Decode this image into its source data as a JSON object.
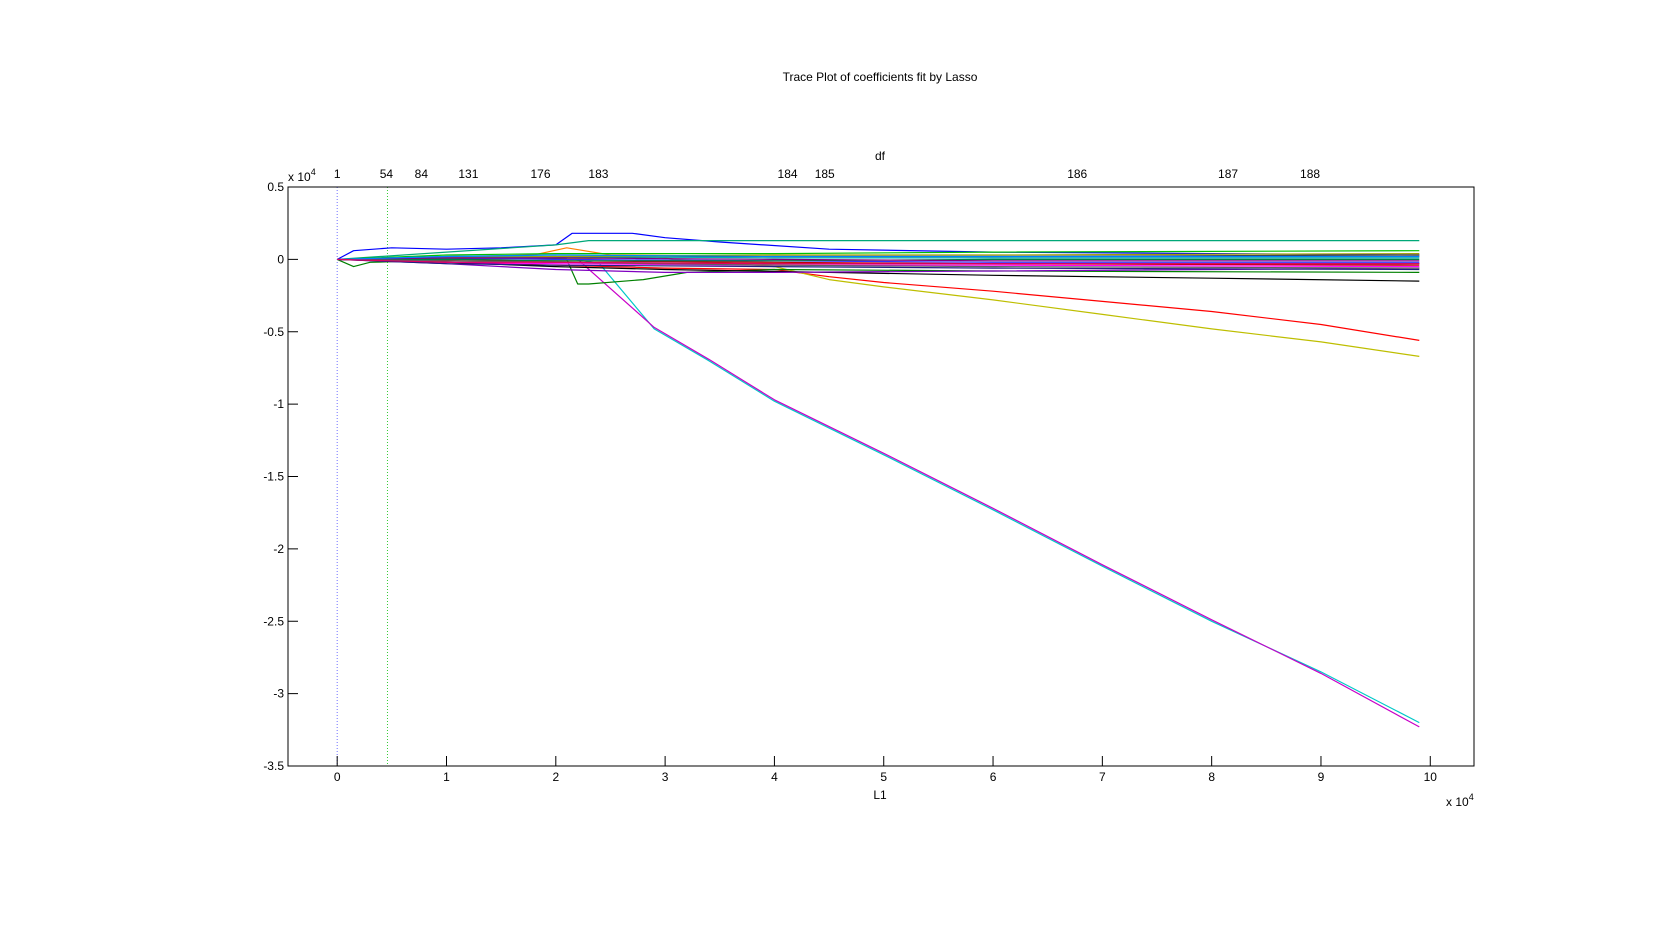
{
  "chart_data": {
    "type": "line",
    "title": "Trace Plot of coefficients fit by Lasso",
    "xlabel": "L1",
    "ylabel": "",
    "top_axis_label": "df",
    "x_exponent": {
      "base": "x 10",
      "power": "4"
    },
    "y_exponent": {
      "base": "x 10",
      "power": "4"
    },
    "xlim": [
      -0.45,
      10.4
    ],
    "ylim": [
      -3.5,
      0.5
    ],
    "x_ticks": [
      0,
      1,
      2,
      3,
      4,
      5,
      6,
      7,
      8,
      9,
      10
    ],
    "x_tick_labels": [
      "0",
      "1",
      "2",
      "3",
      "4",
      "5",
      "6",
      "7",
      "8",
      "9",
      "10"
    ],
    "y_ticks": [
      0.5,
      0,
      -0.5,
      -1,
      -1.5,
      -2,
      -2.5,
      -3,
      -3.5
    ],
    "y_tick_labels": [
      "0.5",
      "0",
      "-0.5",
      "-1",
      "-1.5",
      "-2",
      "-2.5",
      "-3",
      "-3.5"
    ],
    "df_ticks": [
      {
        "x": 0.0,
        "label": "1"
      },
      {
        "x": 0.45,
        "label": "54"
      },
      {
        "x": 0.77,
        "label": "84"
      },
      {
        "x": 1.2,
        "label": "131"
      },
      {
        "x": 1.86,
        "label": "176"
      },
      {
        "x": 2.39,
        "label": "183"
      },
      {
        "x": 4.12,
        "label": "184"
      },
      {
        "x": 4.46,
        "label": "185"
      },
      {
        "x": 6.77,
        "label": "186"
      },
      {
        "x": 8.15,
        "label": "187"
      },
      {
        "x": 8.9,
        "label": "188"
      }
    ],
    "vertical_lines": [
      {
        "x": 0.0,
        "color": "#7070ff",
        "style": "dotted"
      },
      {
        "x": 0.46,
        "color": "#33cc33",
        "style": "dotted"
      }
    ],
    "grid": false,
    "legend": "none",
    "series": [
      {
        "color": "#00c8c8",
        "x": [
          0,
          2.1,
          2.4,
          2.9,
          3.4,
          4.0,
          5.0,
          6.0,
          7.0,
          8.0,
          9.0,
          9.9
        ],
        "y": [
          0,
          0.01,
          -0.03,
          -0.48,
          -0.7,
          -0.98,
          -1.35,
          -1.73,
          -2.12,
          -2.5,
          -2.85,
          -3.2
        ]
      },
      {
        "color": "#c800c8",
        "x": [
          0,
          2.0,
          2.2,
          2.9,
          3.4,
          4.0,
          5.0,
          6.0,
          7.0,
          8.0,
          9.0,
          9.9
        ],
        "y": [
          0,
          0.02,
          0.0,
          -0.47,
          -0.69,
          -0.97,
          -1.34,
          -1.72,
          -2.11,
          -2.49,
          -2.86,
          -3.23
        ]
      },
      {
        "color": "#ff0000",
        "x": [
          0,
          1.0,
          2.0,
          3.0,
          4.0,
          4.5,
          5.0,
          6.0,
          7.0,
          8.0,
          9.0,
          9.9
        ],
        "y": [
          0,
          -0.02,
          -0.04,
          -0.06,
          -0.07,
          -0.12,
          -0.16,
          -0.22,
          -0.29,
          -0.36,
          -0.45,
          -0.56
        ]
      },
      {
        "color": "#bebe00",
        "x": [
          0,
          1.0,
          2.0,
          2.9,
          3.1,
          4.0,
          4.5,
          5.0,
          6.0,
          7.0,
          8.0,
          9.0,
          9.9
        ],
        "y": [
          0,
          0.01,
          0.0,
          0.02,
          0.0,
          -0.05,
          -0.14,
          -0.19,
          -0.28,
          -0.38,
          -0.48,
          -0.57,
          -0.67
        ]
      },
      {
        "color": "#0000ff",
        "x": [
          0,
          0.15,
          0.5,
          1.0,
          1.5,
          2.0,
          2.15,
          2.7,
          3.0,
          3.5,
          4.5,
          6.0,
          8.0,
          9.9
        ],
        "y": [
          0,
          0.06,
          0.08,
          0.07,
          0.08,
          0.1,
          0.18,
          0.18,
          0.15,
          0.12,
          0.07,
          0.05,
          0.04,
          0.03
        ]
      },
      {
        "color": "#00a878",
        "x": [
          0,
          1.0,
          2.0,
          2.3,
          3.0,
          5.0,
          7.0,
          9.9
        ],
        "y": [
          0,
          0.05,
          0.1,
          0.13,
          0.13,
          0.13,
          0.13,
          0.13
        ]
      },
      {
        "color": "#008000",
        "x": [
          0,
          0.15,
          0.3,
          0.8,
          1.5,
          2.1,
          2.2,
          2.3,
          2.8,
          3.2,
          4.0,
          6.0,
          9.9
        ],
        "y": [
          0,
          -0.05,
          -0.02,
          -0.01,
          0.01,
          0.0,
          -0.17,
          -0.17,
          -0.14,
          -0.09,
          -0.07,
          -0.08,
          -0.09
        ]
      },
      {
        "color": "#000000",
        "x": [
          0,
          1.0,
          2.0,
          3.0,
          4.5,
          6.0,
          8.0,
          9.9
        ],
        "y": [
          0,
          -0.02,
          -0.05,
          -0.07,
          -0.09,
          -0.11,
          -0.13,
          -0.15
        ]
      },
      {
        "color": "#8000c0",
        "x": [
          0,
          1.0,
          2.0,
          3.0,
          4.0,
          6.0,
          9.9
        ],
        "y": [
          0,
          -0.03,
          -0.07,
          -0.09,
          -0.09,
          -0.08,
          -0.06
        ]
      },
      {
        "color": "#ff8000",
        "x": [
          0,
          1.0,
          1.8,
          2.1,
          2.5,
          4.0,
          9.9
        ],
        "y": [
          0,
          0.02,
          0.03,
          0.08,
          0.03,
          0.02,
          0.02
        ]
      },
      {
        "color": "#800000",
        "x": [
          0,
          1.0,
          2.0,
          4.0,
          6.0,
          9.9
        ],
        "y": [
          0,
          -0.01,
          -0.02,
          -0.03,
          -0.03,
          -0.03
        ]
      },
      {
        "color": "#404040",
        "x": [
          0,
          1.0,
          2.0,
          4.0,
          6.0,
          9.9
        ],
        "y": [
          0,
          0.0,
          0.01,
          0.02,
          0.02,
          0.03
        ]
      },
      {
        "color": "#3030ff",
        "x": [
          0,
          1.0,
          2.0,
          4.0,
          6.0,
          9.9
        ],
        "y": [
          0,
          0.01,
          0.0,
          -0.01,
          -0.02,
          -0.02
        ]
      },
      {
        "color": "#00c000",
        "x": [
          0,
          1.0,
          2.0,
          4.0,
          6.0,
          9.9
        ],
        "y": [
          0,
          0.03,
          0.04,
          0.04,
          0.05,
          0.06
        ]
      },
      {
        "color": "#ff00ff",
        "x": [
          0,
          1.0,
          2.0,
          4.0,
          6.0,
          9.9
        ],
        "y": [
          0,
          -0.02,
          -0.03,
          -0.04,
          -0.04,
          -0.05
        ]
      },
      {
        "color": "#00b0b0",
        "x": [
          0,
          1.0,
          2.0,
          4.0,
          6.0,
          9.9
        ],
        "y": [
          0,
          0.02,
          0.02,
          0.01,
          0.01,
          0.01
        ]
      },
      {
        "color": "#c00000",
        "x": [
          0,
          1.0,
          2.0,
          4.0,
          6.0,
          9.9
        ],
        "y": [
          0,
          -0.01,
          -0.01,
          -0.02,
          -0.03,
          -0.04
        ]
      },
      {
        "color": "#a0a000",
        "x": [
          0,
          1.0,
          2.0,
          4.0,
          6.0,
          9.9
        ],
        "y": [
          0,
          0.01,
          0.02,
          0.03,
          0.03,
          0.04
        ]
      },
      {
        "color": "#202080",
        "x": [
          0,
          1.0,
          2.0,
          4.0,
          6.0,
          9.9
        ],
        "y": [
          0,
          -0.03,
          -0.04,
          -0.05,
          -0.06,
          -0.07
        ]
      },
      {
        "color": "#008040",
        "x": [
          0,
          1.0,
          2.0,
          4.0,
          6.0,
          9.9
        ],
        "y": [
          0,
          0.0,
          -0.01,
          -0.01,
          0.0,
          0.0
        ]
      },
      {
        "color": "#800080",
        "x": [
          0,
          1.0,
          2.0,
          4.0,
          6.0,
          9.9
        ],
        "y": [
          0,
          0.01,
          0.01,
          0.0,
          -0.01,
          -0.01
        ]
      },
      {
        "color": "#606060",
        "x": [
          0,
          1.0,
          2.0,
          4.0,
          6.0,
          9.9
        ],
        "y": [
          0,
          -0.01,
          -0.02,
          -0.04,
          -0.05,
          -0.06
        ]
      },
      {
        "color": "#0080ff",
        "x": [
          0,
          1.0,
          2.0,
          4.0,
          6.0,
          9.9
        ],
        "y": [
          0,
          0.02,
          0.03,
          0.02,
          0.02,
          0.02
        ]
      },
      {
        "color": "#e00060",
        "x": [
          0,
          1.0,
          2.0,
          4.0,
          6.0,
          9.9
        ],
        "y": [
          0,
          -0.02,
          -0.02,
          -0.03,
          -0.03,
          -0.03
        ]
      }
    ]
  }
}
